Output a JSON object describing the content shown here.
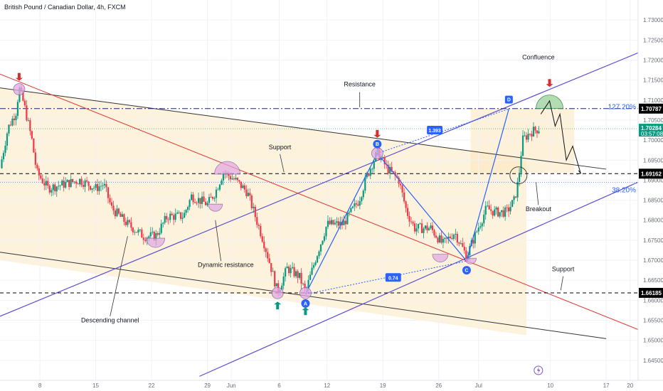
{
  "header": {
    "title": "British Pound / Canadian Dollar, 4h, FXCM"
  },
  "colors": {
    "up": "#089981",
    "down": "#f23645",
    "channel": "#5d4fd1",
    "blackChannel": "#333333",
    "redLine": "#e53935",
    "pattern": "#2962ff",
    "fill": "#fdf0d5",
    "green": "#a5d6a7"
  },
  "chart_data": {
    "type": "candlestick",
    "title": "British Pound / Canadian Dollar, 4h, FXCM",
    "ylim": [
      1.64,
      1.735
    ],
    "y_ticks": [
      1.645,
      1.65,
      1.655,
      1.66,
      1.665,
      1.67,
      1.675,
      1.68,
      1.685,
      1.69,
      1.695,
      1.7,
      1.705,
      1.71,
      1.715,
      1.72,
      1.725,
      1.73
    ],
    "y_tick_labels": [
      "1.64500",
      "1.65000",
      "1.65500",
      "1.66000",
      "1.66500",
      "1.67000",
      "1.67500",
      "1.68000",
      "1.68500",
      "1.69000",
      "1.69500",
      "1.70000",
      "1.70500",
      "1.71000",
      "1.71500",
      "1.72000",
      "1.72500",
      "1.73000"
    ],
    "x_ticks": [
      {
        "label": "8",
        "day": 5
      },
      {
        "label": "15",
        "day": 12
      },
      {
        "label": "22",
        "day": 19
      },
      {
        "label": "29",
        "day": 26
      },
      {
        "label": "Jun",
        "day": 29
      },
      {
        "label": "6",
        "day": 35
      },
      {
        "label": "12",
        "day": 41
      },
      {
        "label": "19",
        "day": 48
      },
      {
        "label": "26",
        "day": 55
      },
      {
        "label": "Jul",
        "day": 60
      },
      {
        "label": "10",
        "day": 69
      },
      {
        "label": "17",
        "day": 76
      },
      {
        "label": "20",
        "day": 79
      }
    ],
    "xlim_days": [
      0,
      80
    ],
    "price_path": [
      [
        0,
        1.693
      ],
      [
        1,
        1.703
      ],
      [
        2,
        1.707
      ],
      [
        2.4,
        1.713
      ],
      [
        3,
        1.709
      ],
      [
        4,
        1.7
      ],
      [
        4.6,
        1.692
      ],
      [
        6,
        1.688
      ],
      [
        8,
        1.689
      ],
      [
        10,
        1.69
      ],
      [
        12,
        1.688
      ],
      [
        13,
        1.689
      ],
      [
        14,
        1.683
      ],
      [
        16,
        1.679
      ],
      [
        18,
        1.676
      ],
      [
        19.5,
        1.676
      ],
      [
        21,
        1.681
      ],
      [
        23,
        1.681
      ],
      [
        24,
        1.686
      ],
      [
        26,
        1.684
      ],
      [
        27,
        1.687
      ],
      [
        28,
        1.692
      ],
      [
        29.5,
        1.69
      ],
      [
        31,
        1.687
      ],
      [
        32,
        1.681
      ],
      [
        33,
        1.675
      ],
      [
        34,
        1.668
      ],
      [
        34.8,
        1.662
      ],
      [
        36,
        1.668
      ],
      [
        37.5,
        1.666
      ],
      [
        38.3,
        1.662
      ],
      [
        39.5,
        1.67
      ],
      [
        41,
        1.679
      ],
      [
        43,
        1.679
      ],
      [
        44,
        1.682
      ],
      [
        45,
        1.685
      ],
      [
        46,
        1.691
      ],
      [
        47.3,
        1.697
      ],
      [
        48.5,
        1.693
      ],
      [
        50,
        1.69
      ],
      [
        51,
        1.682
      ],
      [
        52,
        1.678
      ],
      [
        54,
        1.678
      ],
      [
        55.5,
        1.674
      ],
      [
        57,
        1.677
      ],
      [
        58.5,
        1.671
      ],
      [
        59.5,
        1.676
      ],
      [
        61,
        1.683
      ],
      [
        62,
        1.682
      ],
      [
        63.5,
        1.682
      ],
      [
        64.5,
        1.685
      ],
      [
        65,
        1.69
      ],
      [
        65.5,
        1.7
      ],
      [
        66.5,
        1.702
      ],
      [
        67.5,
        1.70284
      ]
    ],
    "horizontal_levels": [
      {
        "price": 1.70787,
        "label": "1.70787",
        "style": "dash-dot",
        "color": "#1a237e"
      },
      {
        "price": 1.69162,
        "label": "1.69162",
        "style": "dashed",
        "color": "#000000"
      },
      {
        "price": 1.66185,
        "label": "1.66185",
        "style": "dashed",
        "color": "#000000"
      },
      {
        "price": 1.6895,
        "label": "",
        "style": "dotted",
        "color": "#2962ff"
      }
    ],
    "last_price": {
      "value": 1.70284,
      "label": "1.70284",
      "countdown": "03:57:08"
    },
    "fib_labels": [
      {
        "text": "127.20%",
        "day": 75.5,
        "price": 1.7083
      },
      {
        "text": "38.20%",
        "day": 75.5,
        "price": 1.6875
      }
    ],
    "pattern_points": [
      {
        "label": "A",
        "day": 38.3,
        "price": 1.6615
      },
      {
        "label": "B",
        "day": 47.3,
        "price": 1.6967
      },
      {
        "label": "C",
        "day": 58.5,
        "price": 1.6698
      },
      {
        "label": "D",
        "day": 63.8,
        "price": 1.7078
      }
    ],
    "ratios": [
      {
        "text": "1.393",
        "day": 54.5,
        "price": 1.7025
      },
      {
        "text": "0.74",
        "day": 49.3,
        "price": 1.6657
      }
    ],
    "projection_path": [
      [
        67.8,
        1.7065
      ],
      [
        68.9,
        1.7098
      ],
      [
        69.6,
        1.7035
      ],
      [
        70.2,
        1.7065
      ],
      [
        71,
        1.695
      ],
      [
        71.8,
        1.6985
      ],
      [
        72.8,
        1.6917
      ]
    ],
    "annotations": [
      {
        "text": "Confluence",
        "day": 67.5,
        "price": 1.7202
      },
      {
        "text": "Resistance",
        "day": 45.1,
        "price": 1.7134
      },
      {
        "text": "Support",
        "day": 35.1,
        "price": 1.6977
      },
      {
        "text": "Dynamic resistance",
        "day": 28.3,
        "price": 1.6683
      },
      {
        "text": "Breakout",
        "day": 67.5,
        "price": 1.6823
      },
      {
        "text": "Support",
        "day": 70.6,
        "price": 1.6673
      },
      {
        "text": "Descending channel",
        "day": 13.8,
        "price": 1.6545
      }
    ]
  }
}
